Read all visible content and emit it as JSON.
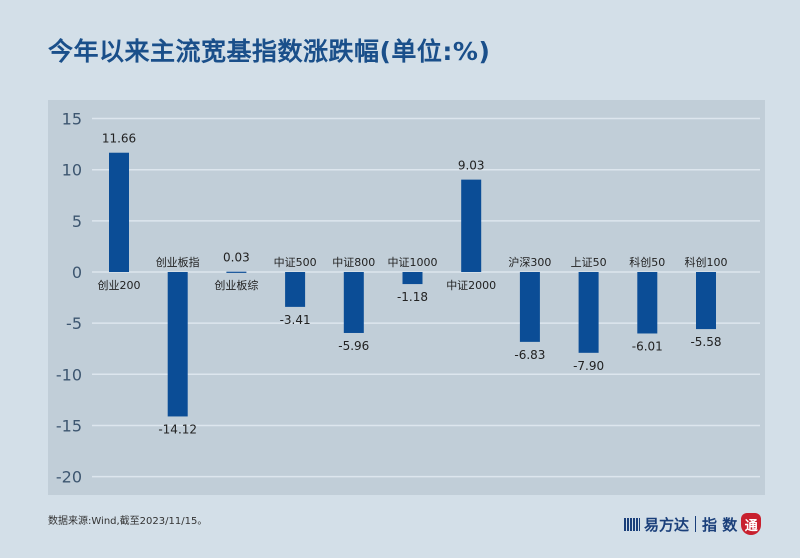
{
  "title": "今年以来主流宽基指数涨跌幅(单位:%)",
  "source": "数据来源:Wind,截至2023/11/15。",
  "logo": {
    "brand": "易方达",
    "product": "指 数",
    "seal": "通"
  },
  "colors": {
    "bar": "#0b4d96",
    "background": "#d3dfe8",
    "plot": "#c1ced8",
    "grid": "#dde6ee"
  },
  "chart_data": {
    "type": "bar",
    "title": "今年以来主流宽基指数涨跌幅(单位:%)",
    "categories": [
      "创业200",
      "创业板指",
      "创业板综",
      "中证500",
      "中证800",
      "中证1000",
      "中证2000",
      "沪深300",
      "上证50",
      "科创50",
      "科创100"
    ],
    "values": [
      11.66,
      -14.12,
      0.03,
      -3.41,
      -5.96,
      -1.18,
      9.03,
      -6.83,
      -7.9,
      -6.01,
      -5.58
    ],
    "value_labels": [
      "11.66",
      "-14.12",
      "0.03",
      "-3.41",
      "-5.96",
      "-1.18",
      "9.03",
      "-6.83",
      "-7.90",
      "-6.01",
      "-5.58"
    ],
    "ylim": [
      -20,
      15
    ],
    "yticks": [
      15,
      10,
      5,
      0,
      -5,
      -10,
      -15,
      -20
    ],
    "grid": true,
    "legend": "none"
  }
}
